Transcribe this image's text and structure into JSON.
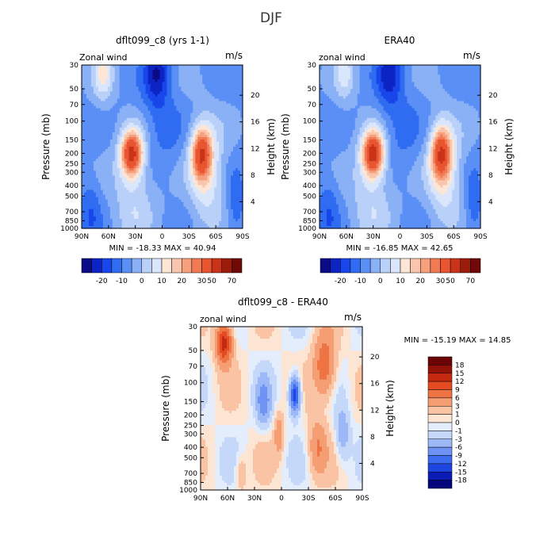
{
  "page_title": "DJF",
  "colors": {
    "wind_levels": [
      "#0b0b86",
      "#0c24c4",
      "#1846ea",
      "#2f6cf2",
      "#5a8ff6",
      "#8ab0f6",
      "#b9d0f9",
      "#d9e6fb",
      "#fde6d6",
      "#f9c6ad",
      "#f6a07d",
      "#f17a55",
      "#e85530",
      "#c93318",
      "#9c1c0c",
      "#700808"
    ],
    "diff_levels": [
      "#06067c",
      "#0b1cb6",
      "#1e44e2",
      "#3d6cf0",
      "#6e93f4",
      "#9db8f6",
      "#c5d8f9",
      "#e3edfc",
      "#fde5d4",
      "#f9c3a4",
      "#f59d73",
      "#ee7444",
      "#e54b22",
      "#c52a10",
      "#931208",
      "#6b0404"
    ]
  },
  "chart_data": [
    {
      "type": "heatmap",
      "id": "model",
      "title": "dflt099_c8 (yrs 1-1)",
      "field_label": "Zonal wind",
      "units": "m/s",
      "ylabel": "Pressure (mb)",
      "ylabel_right": "Height (km)",
      "x_ticks": [
        "90N",
        "60N",
        "30N",
        "0",
        "30S",
        "60S",
        "90S"
      ],
      "x_range": [
        90,
        -90
      ],
      "y_ticks": [
        "30",
        "50",
        "70",
        "100",
        "150",
        "200",
        "250",
        "300",
        "400",
        "500",
        "700",
        "850",
        "1000"
      ],
      "y_tick_values": [
        30,
        50,
        70,
        100,
        150,
        200,
        250,
        300,
        400,
        500,
        700,
        850,
        1000
      ],
      "y_range": [
        30,
        1000
      ],
      "y_scale": "log",
      "height_ticks": [
        "4",
        "8",
        "12",
        "16",
        "20"
      ],
      "height_tick_values": [
        4,
        8,
        12,
        16,
        20
      ],
      "stats": "MIN = -18.33   MAX = 40.94",
      "min": -18.33,
      "max": 40.94,
      "colorbar_labels": [
        "-20",
        "-10",
        "0",
        "10",
        "20",
        "30",
        "50",
        "70"
      ],
      "colorbar_levels": [
        -25,
        -20,
        -15,
        -10,
        -5,
        0,
        5,
        10,
        15,
        20,
        25,
        30,
        40,
        50,
        60,
        70
      ],
      "features": [
        {
          "lat": 35,
          "p": 200,
          "value": 40
        },
        {
          "lat": 65,
          "p": 40,
          "value": 15
        },
        {
          "lat": -45,
          "p": 200,
          "value": 33
        },
        {
          "lat": 5,
          "p": 40,
          "value": -18
        }
      ]
    },
    {
      "type": "heatmap",
      "id": "era40",
      "title": "ERA40",
      "field_label": "zonal wind",
      "units": "m/s",
      "ylabel": "Pressure (mb)",
      "ylabel_right": "Height (km)",
      "x_ticks": [
        "90N",
        "60N",
        "30N",
        "0",
        "30S",
        "60S",
        "90S"
      ],
      "x_range": [
        90,
        -90
      ],
      "y_ticks": [
        "30",
        "50",
        "70",
        "100",
        "150",
        "200",
        "250",
        "300",
        "400",
        "500",
        "700",
        "850",
        "1000"
      ],
      "y_tick_values": [
        30,
        50,
        70,
        100,
        150,
        200,
        250,
        300,
        400,
        500,
        700,
        850,
        1000
      ],
      "y_range": [
        30,
        1000
      ],
      "y_scale": "log",
      "height_ticks": [
        "4",
        "8",
        "12",
        "16",
        "20"
      ],
      "height_tick_values": [
        4,
        8,
        12,
        16,
        20
      ],
      "stats": "MIN = -16.85   MAX = 42.65",
      "min": -16.85,
      "max": 42.65,
      "colorbar_labels": [
        "-20",
        "-10",
        "0",
        "10",
        "20",
        "30",
        "50",
        "70"
      ],
      "colorbar_levels": [
        -25,
        -20,
        -15,
        -10,
        -5,
        0,
        5,
        10,
        15,
        20,
        25,
        30,
        40,
        50,
        60,
        70
      ],
      "features": [
        {
          "lat": 30,
          "p": 200,
          "value": 42
        },
        {
          "lat": 62,
          "p": 40,
          "value": 12
        },
        {
          "lat": -48,
          "p": 200,
          "value": 33
        },
        {
          "lat": 10,
          "p": 40,
          "value": -17
        }
      ]
    },
    {
      "type": "heatmap",
      "id": "diff",
      "title": "dflt099_c8 - ERA40",
      "field_label": "zonal wind",
      "units": "m/s",
      "ylabel": "Pressure (mb)",
      "ylabel_right": "Height (km)",
      "x_ticks": [
        "90N",
        "60N",
        "30N",
        "0",
        "30S",
        "60S",
        "90S"
      ],
      "x_range": [
        90,
        -90
      ],
      "y_ticks": [
        "30",
        "50",
        "70",
        "100",
        "150",
        "200",
        "250",
        "300",
        "400",
        "500",
        "700",
        "850",
        "1000"
      ],
      "y_tick_values": [
        30,
        50,
        70,
        100,
        150,
        200,
        250,
        300,
        400,
        500,
        700,
        850,
        1000
      ],
      "y_range": [
        30,
        1000
      ],
      "y_scale": "log",
      "height_ticks": [
        "4",
        "8",
        "12",
        "16",
        "20"
      ],
      "height_tick_values": [
        4,
        8,
        12,
        16,
        20
      ],
      "stats": "MIN = -15.19   MAX =  14.85",
      "min": -15.19,
      "max": 14.85,
      "colorbar_labels": [
        "18",
        "15",
        "12",
        "9",
        "6",
        "3",
        "1",
        "0",
        "-1",
        "-3",
        "-6",
        "-9",
        "-12",
        "-15",
        "-18"
      ],
      "colorbar_levels": [
        -18,
        -15,
        -12,
        -9,
        -6,
        -3,
        -1,
        0,
        1,
        3,
        6,
        9,
        12,
        15,
        18
      ],
      "features": [
        {
          "lat": 65,
          "p": 45,
          "value": 14
        },
        {
          "lat": -45,
          "p": 80,
          "value": 9
        },
        {
          "lat": -15,
          "p": 130,
          "value": -15
        },
        {
          "lat": 3,
          "p": 300,
          "value": 5
        }
      ]
    }
  ]
}
